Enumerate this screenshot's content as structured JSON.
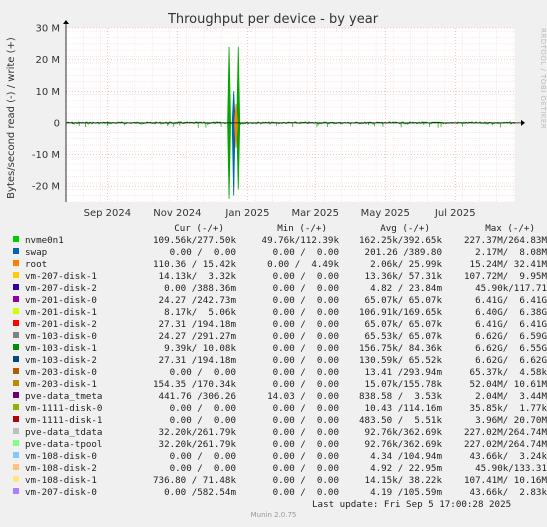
{
  "chart_data": {
    "type": "line",
    "title": "Throughput per device - by year",
    "ylabel": "Bytes/second read (-) / write (+)",
    "ylim": [
      -25000000,
      30000000
    ],
    "yticks": [
      {
        "v": 30000000,
        "label": "30 M"
      },
      {
        "v": 20000000,
        "label": "20 M"
      },
      {
        "v": 10000000,
        "label": "10 M"
      },
      {
        "v": 0,
        "label": "0"
      },
      {
        "v": -10000000,
        "label": "-10 M"
      },
      {
        "v": -20000000,
        "label": "-20 M"
      }
    ],
    "xlim": [
      "2024-08-10",
      "2025-09-05"
    ],
    "xticks": [
      {
        "date": "2024-09-15",
        "label": "Sep 2024"
      },
      {
        "date": "2024-11-15",
        "label": "Nov 2024"
      },
      {
        "date": "2025-01-15",
        "label": "Jan 2025"
      },
      {
        "date": "2025-03-15",
        "label": "Mar 2025"
      },
      {
        "date": "2025-05-15",
        "label": "May 2025"
      },
      {
        "date": "2025-07-15",
        "label": "Jul 2025"
      }
    ],
    "spikes": [
      {
        "date": "2024-12-30",
        "write": 24000000,
        "read": -24000000,
        "color": "#00a800"
      },
      {
        "date": "2025-01-03",
        "write": 10000000,
        "read": -23000000,
        "color": "#0066b3"
      },
      {
        "date": "2025-01-07",
        "write": 24000000,
        "read": -21000000,
        "color": "#00a800"
      },
      {
        "date": "2025-01-05",
        "write": 6000000,
        "read": -8000000,
        "color": "#ff8000"
      }
    ]
  },
  "legend_header": {
    "cur": "Cur (-/+)",
    "min": "Min (-/+)",
    "avg": "Avg (-/+)",
    "max": "Max (-/+)"
  },
  "legend": [
    {
      "name": "nvme0n1",
      "color": "#00cc00",
      "cur": "109.56k/277.50k",
      "min": "49.76k/112.39k",
      "avg": "162.25k/392.65k",
      "max": "227.37M/264.83M"
    },
    {
      "name": "swap",
      "color": "#0066b3",
      "cur": "0.00 /  0.00",
      "min": "0.00 /  0.00",
      "avg": "201.26 /389.80",
      "max": "2.17M/  8.08M"
    },
    {
      "name": "root",
      "color": "#ff8000",
      "cur": "110.36 / 15.42k",
      "min": "0.00 /  4.49k",
      "avg": "2.06k/ 25.99k",
      "max": "15.24M/ 32.41M"
    },
    {
      "name": "vm-207-disk-1",
      "color": "#ffcc00",
      "cur": "14.13k/  3.32k",
      "min": "0.00 /  0.00",
      "avg": "13.36k/ 57.31k",
      "max": "107.72M/  9.95M"
    },
    {
      "name": "vm-207-disk-2",
      "color": "#330099",
      "cur": "0.00 /388.36m",
      "min": "0.00 /  0.00",
      "avg": "4.82 / 23.84m",
      "max": "45.90k/117.71"
    },
    {
      "name": "vm-201-disk-0",
      "color": "#990099",
      "cur": "24.27 /242.73m",
      "min": "0.00 /  0.00",
      "avg": "65.07k/ 65.07k",
      "max": "6.41G/  6.41G"
    },
    {
      "name": "vm-201-disk-1",
      "color": "#ccff00",
      "cur": "8.17k/  5.06k",
      "min": "0.00 /  0.00",
      "avg": "106.91k/169.65k",
      "max": "6.40G/  6.38G"
    },
    {
      "name": "vm-201-disk-2",
      "color": "#ff0000",
      "cur": "27.31 /194.18m",
      "min": "0.00 /  0.00",
      "avg": "65.07k/ 65.07k",
      "max": "6.41G/  6.41G"
    },
    {
      "name": "vm-103-disk-0",
      "color": "#808080",
      "cur": "24.27 /291.27m",
      "min": "0.00 /  0.00",
      "avg": "65.53k/ 65.07k",
      "max": "6.62G/  6.59G"
    },
    {
      "name": "vm-103-disk-1",
      "color": "#008f00",
      "cur": "9.39k/ 10.08k",
      "min": "0.00 /  0.00",
      "avg": "156.75k/ 84.36k",
      "max": "6.62G/  6.55G"
    },
    {
      "name": "vm-103-disk-2",
      "color": "#00487d",
      "cur": "27.31 /194.18m",
      "min": "0.00 /  0.00",
      "avg": "130.59k/ 65.52k",
      "max": "6.62G/  6.62G"
    },
    {
      "name": "vm-203-disk-0",
      "color": "#b35a00",
      "cur": "0.00 /  0.00",
      "min": "0.00 /  0.00",
      "avg": "13.41 /293.94m",
      "max": "65.37k/  4.58k"
    },
    {
      "name": "vm-203-disk-1",
      "color": "#b38f00",
      "cur": "154.35 /170.34k",
      "min": "0.00 /  0.00",
      "avg": "15.07k/155.78k",
      "max": "52.04M/ 10.61M"
    },
    {
      "name": "pve-data_tmeta",
      "color": "#6b006b",
      "cur": "441.76 /306.26",
      "min": "14.03 /  0.00",
      "avg": "838.58 /  3.53k",
      "max": "2.04M/  3.44M"
    },
    {
      "name": "vm-1111-disk-0",
      "color": "#8fb300",
      "cur": "0.00 /  0.00",
      "min": "0.00 /  0.00",
      "avg": "10.43 /114.16m",
      "max": "35.85k/  1.77k"
    },
    {
      "name": "vm-1111-disk-1",
      "color": "#b30000",
      "cur": "0.00 /  0.00",
      "min": "0.00 /  0.00",
      "avg": "483.50 /  5.51k",
      "max": "3.96M/ 20.70M"
    },
    {
      "name": "pve-data_tdata",
      "color": "#bebebe",
      "cur": "32.20k/261.79k",
      "min": "0.00 /  0.00",
      "avg": "92.76k/362.69k",
      "max": "227.02M/264.74M"
    },
    {
      "name": "pve-data-tpool",
      "color": "#80ff80",
      "cur": "32.20k/261.79k",
      "min": "0.00 /  0.00",
      "avg": "92.76k/362.69k",
      "max": "227.02M/264.74M"
    },
    {
      "name": "vm-108-disk-0",
      "color": "#80c9ff",
      "cur": "0.00 /  0.00",
      "min": "0.00 /  0.00",
      "avg": "4.34 /104.94m",
      "max": "43.66k/  3.24k"
    },
    {
      "name": "vm-108-disk-2",
      "color": "#ffc080",
      "cur": "0.00 /  0.00",
      "min": "0.00 /  0.00",
      "avg": "4.92 / 22.95m",
      "max": "45.90k/133.31"
    },
    {
      "name": "vm-108-disk-1",
      "color": "#ffe680",
      "cur": "736.80 / 71.48k",
      "min": "0.00 /  0.00",
      "avg": "14.15k/ 38.22k",
      "max": "107.41M/ 10.16M"
    },
    {
      "name": "vm-207-disk-0",
      "color": "#aa80ff",
      "cur": "0.00 /582.54m",
      "min": "0.00 /  0.00",
      "avg": "4.19 /105.59m",
      "max": "43.66k/  2.83k"
    }
  ],
  "last_update": "Last update: Fri Sep  5 17:00:28 2025",
  "munin_version": "Munin 2.0.75",
  "side_label": "RRDTOOL / TOBI OETIKER"
}
